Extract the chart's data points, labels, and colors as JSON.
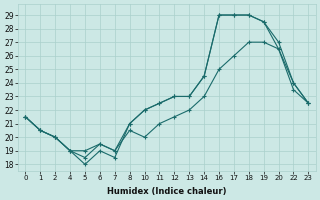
{
  "xlabel": "Humidex (Indice chaleur)",
  "background_color": "#cce8e5",
  "line_color": "#1a6b6b",
  "grid_color": "#aad0cc",
  "xlabels": [
    "0",
    "1",
    "2",
    "4",
    "5",
    "6",
    "7",
    "8",
    "10",
    "11",
    "12",
    "13",
    "14",
    "16",
    "17",
    "18",
    "19",
    "20",
    "22",
    "23"
  ],
  "yticks": [
    18,
    19,
    20,
    21,
    22,
    23,
    24,
    25,
    26,
    27,
    28,
    29
  ],
  "ylim": [
    17.5,
    29.8
  ],
  "series": [
    {
      "y": [
        21.5,
        20.5,
        20.0,
        19.0,
        18.0,
        19.0,
        18.5,
        21.0,
        22.0,
        22.5,
        23.0,
        23.0,
        24.5,
        29.0,
        29.0,
        29.0,
        28.5,
        26.5,
        23.5,
        22.5
      ]
    },
    {
      "y": [
        21.5,
        20.5,
        20.0,
        19.0,
        18.5,
        19.5,
        19.0,
        21.0,
        22.0,
        22.5,
        23.0,
        23.0,
        24.5,
        29.0,
        29.0,
        29.0,
        28.5,
        27.0,
        24.0,
        22.5
      ]
    },
    {
      "y": [
        21.5,
        20.5,
        20.0,
        19.0,
        19.0,
        19.5,
        19.0,
        20.5,
        20.0,
        21.0,
        21.5,
        22.0,
        23.0,
        25.0,
        26.0,
        27.0,
        27.0,
        26.5,
        24.0,
        22.5
      ]
    }
  ]
}
